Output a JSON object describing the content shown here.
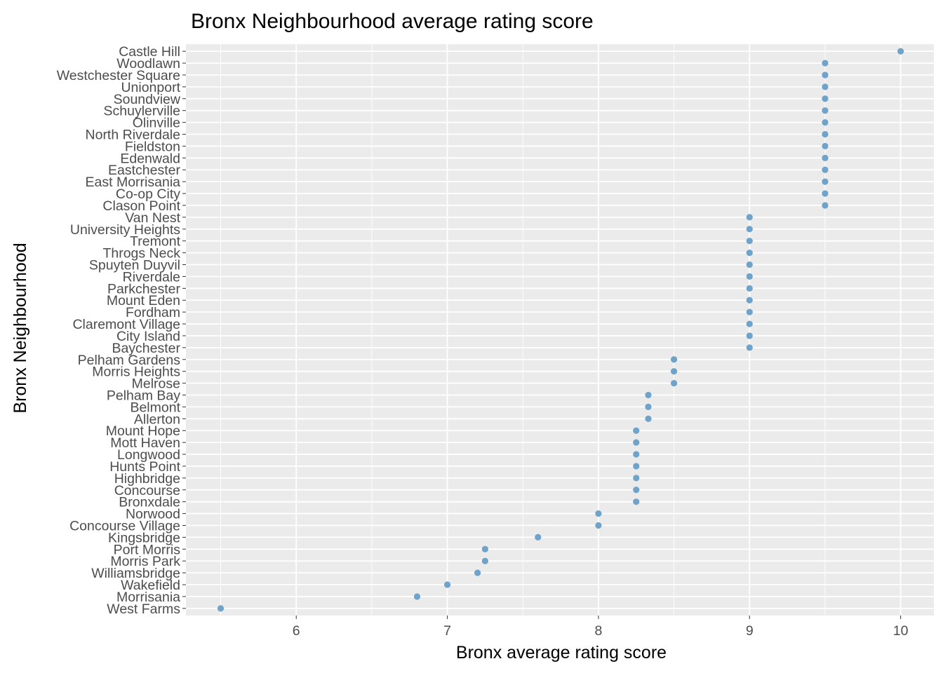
{
  "chart_data": {
    "type": "scatter",
    "title": "Bronx Neighbourhood average rating score",
    "xlabel": "Bronx average rating score",
    "ylabel": "Bronx Neighbourhood",
    "xlim": [
      5.27,
      10.22
    ],
    "xticks": [
      6,
      7,
      8,
      9,
      10
    ],
    "grid": true,
    "point_color": "#6fa3c9",
    "panel_color": "#ebebeb",
    "categories": [
      "Castle Hill",
      "Woodlawn",
      "Westchester Square",
      "Unionport",
      "Soundview",
      "Schuylerville",
      "Olinville",
      "North Riverdale",
      "Fieldston",
      "Edenwald",
      "Eastchester",
      "East Morrisania",
      "Co-op City",
      "Clason Point",
      "Van Nest",
      "University Heights",
      "Tremont",
      "Throgs Neck",
      "Spuyten Duyvil",
      "Riverdale",
      "Parkchester",
      "Mount Eden",
      "Fordham",
      "Claremont Village",
      "City Island",
      "Baychester",
      "Pelham Gardens",
      "Morris Heights",
      "Melrose",
      "Pelham Bay",
      "Belmont",
      "Allerton",
      "Mount Hope",
      "Mott Haven",
      "Longwood",
      "Hunts Point",
      "Highbridge",
      "Concourse",
      "Bronxdale",
      "Norwood",
      "Concourse Village",
      "Kingsbridge",
      "Port Morris",
      "Morris Park",
      "Williamsbridge",
      "Wakefield",
      "Morrisania",
      "West Farms"
    ],
    "values": [
      10.0,
      9.5,
      9.5,
      9.5,
      9.5,
      9.5,
      9.5,
      9.5,
      9.5,
      9.5,
      9.5,
      9.5,
      9.5,
      9.5,
      9.0,
      9.0,
      9.0,
      9.0,
      9.0,
      9.0,
      9.0,
      9.0,
      9.0,
      9.0,
      9.0,
      9.0,
      8.5,
      8.5,
      8.5,
      8.33,
      8.33,
      8.33,
      8.25,
      8.25,
      8.25,
      8.25,
      8.25,
      8.25,
      8.25,
      8.0,
      8.0,
      7.6,
      7.25,
      7.25,
      7.2,
      7.0,
      6.8,
      5.5
    ]
  }
}
